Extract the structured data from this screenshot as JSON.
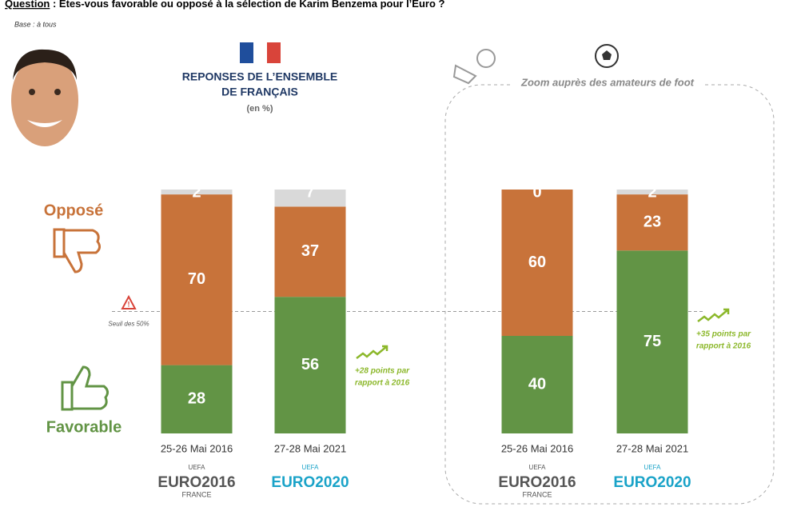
{
  "question_label": "Question",
  "question": " : Etes-vous favorable ou opposé à la sélection de Karim Benzema pour l’Euro ?",
  "base": "Base : à tous",
  "logos": [
    {
      "top": "UEFA",
      "main": "EURO2016",
      "bottom": "FRANCE"
    },
    {
      "top": "UEFA",
      "main": "EURO2020"
    }
  ],
  "chart_data": [
    {
      "type": "bar",
      "stacked": true,
      "title": [
        "REPONSES DE L’ENSEMBLE",
        "DE FRANÇAIS"
      ],
      "subtitle": "(en %)",
      "categories": [
        "25-26 Mai 2016",
        "27-28 Mai 2021"
      ],
      "ylim": [
        0,
        100
      ],
      "series": [
        {
          "name": "Favorable",
          "color": "#629445",
          "values": [
            28,
            56
          ]
        },
        {
          "name": "Opposé",
          "color": "#c8733a",
          "values": [
            70,
            37
          ]
        },
        {
          "color": "#d9d9d9",
          "values": [
            2,
            7
          ]
        }
      ],
      "threshold": {
        "value": 50,
        "label": "Seuil des 50%"
      },
      "annotation": [
        "+28 points par",
        "rapport à 2016"
      ]
    },
    {
      "type": "bar",
      "stacked": true,
      "title": [
        "Zoom auprès des amateurs de foot"
      ],
      "categories": [
        "25-26 Mai 2016",
        "27-28 Mai 2021"
      ],
      "ylim": [
        0,
        100
      ],
      "series": [
        {
          "color": "#629445",
          "values": [
            40,
            75
          ]
        },
        {
          "color": "#c8733a",
          "values": [
            60,
            23
          ]
        },
        {
          "color": "#d9d9d9",
          "values": [
            0,
            2
          ]
        }
      ],
      "annotation": [
        "+35 points par",
        "rapport à 2016"
      ]
    }
  ]
}
